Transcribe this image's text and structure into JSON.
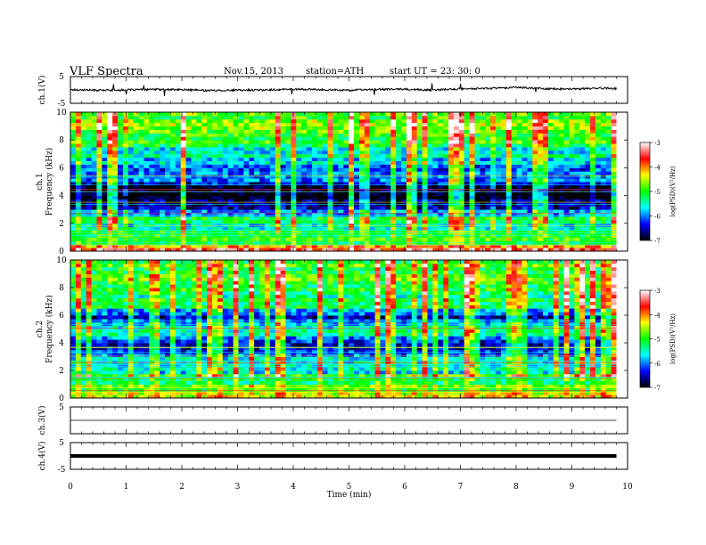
{
  "header": {
    "title": "VLF  Spectra",
    "date": "Nov.15, 2013",
    "station": "station=ATH",
    "start": "start  UT  =   23: 30: 0"
  },
  "colorbar": {
    "label": "log(PSD)(V²/Hz)",
    "range": [
      -7,
      -3
    ],
    "ticks": [
      "-3",
      "-4",
      "-5",
      "-6",
      "-7"
    ],
    "stops": [
      "#000000",
      "#0000ff",
      "#00ffff",
      "#00ff00",
      "#ffff00",
      "#ff0000",
      "#ffffff"
    ]
  },
  "chart_data": [
    {
      "type": "line",
      "panel": "ch1-waveform",
      "ylabel": "ch.1(V)",
      "ylim": [
        -5,
        5
      ],
      "yticks": [
        "5",
        "-5"
      ],
      "x_unit": "min",
      "x": [
        0,
        0.5,
        1,
        1.5,
        2,
        2.5,
        3,
        3.5,
        4,
        4.5,
        5,
        5.5,
        6,
        6.5,
        7,
        7.5,
        8,
        8.5,
        9,
        9.5,
        9.8
      ],
      "values": [
        0.1,
        -0.1,
        0.0,
        0.2,
        0.1,
        -0.2,
        -0.1,
        0.0,
        0.3,
        0.1,
        -0.1,
        0.2,
        0.3,
        -0.1,
        0.4,
        0.6,
        1.0,
        0.5,
        0.3,
        0.7,
        0.5
      ]
    },
    {
      "type": "heatmap",
      "panel": "ch1-spectrogram",
      "ylabel": "ch.1",
      "ylabel2": "Frequency  (kHz)",
      "ylim": [
        0,
        10
      ],
      "yticks": [
        "10",
        "8",
        "6",
        "4",
        "2",
        "0"
      ],
      "x_unit": "min",
      "xlim": [
        0,
        9.8
      ],
      "z_range": [
        -7,
        -3
      ],
      "freq_khz": [
        0.25,
        0.75,
        1.25,
        1.75,
        2.25,
        2.75,
        3.25,
        3.75,
        4.25,
        4.75,
        5.25,
        5.75,
        6.25,
        6.75,
        7.25,
        7.75,
        8.25,
        8.75,
        9.25,
        9.75
      ],
      "mean_log_psd": [
        -3.8,
        -4.8,
        -5.2,
        -5.8,
        -5.4,
        -6.3,
        -6.6,
        -6.8,
        -6.7,
        -6.6,
        -6.2,
        -5.8,
        -6.0,
        -5.6,
        -5.4,
        -5.2,
        -5.2,
        -5.0,
        -5.0,
        -5.0
      ]
    },
    {
      "type": "heatmap",
      "panel": "ch2-spectrogram",
      "ylabel": "ch.2",
      "ylabel2": "Frequency  (kHz)",
      "ylim": [
        0,
        10
      ],
      "yticks": [
        "10",
        "8",
        "6",
        "4",
        "2",
        "0"
      ],
      "x_unit": "min",
      "xlim": [
        0,
        9.8
      ],
      "z_range": [
        -7,
        -3
      ],
      "freq_khz": [
        0.25,
        0.75,
        1.25,
        1.75,
        2.25,
        2.75,
        3.25,
        3.75,
        4.25,
        4.75,
        5.25,
        5.75,
        6.25,
        6.75,
        7.25,
        7.75,
        8.25,
        8.75,
        9.25,
        9.75
      ],
      "mean_log_psd": [
        -4.5,
        -4.9,
        -5.0,
        -5.3,
        -5.6,
        -5.9,
        -6.0,
        -6.1,
        -6.0,
        -5.7,
        -5.9,
        -6.2,
        -5.9,
        -5.5,
        -5.3,
        -5.2,
        -5.1,
        -5.0,
        -5.0,
        -5.0
      ]
    },
    {
      "type": "line",
      "panel": "ch3-waveform",
      "ylabel": "ch.3(V)",
      "ylim": [
        -5,
        5
      ],
      "yticks": [
        "5"
      ],
      "x_unit": "min",
      "x": [
        0,
        9.8
      ],
      "values": [
        0,
        0
      ]
    },
    {
      "type": "line",
      "panel": "ch4-waveform",
      "ylabel": "ch.4(V)",
      "ylim": [
        -5,
        5
      ],
      "yticks": [
        "5",
        "-5"
      ],
      "xlabel": "Time  (min)",
      "xticks": [
        "0",
        "1",
        "2",
        "3",
        "4",
        "5",
        "6",
        "7",
        "8",
        "9",
        "10"
      ],
      "x_unit": "min",
      "x": [
        0,
        9.8
      ],
      "values": [
        0,
        0
      ]
    }
  ]
}
